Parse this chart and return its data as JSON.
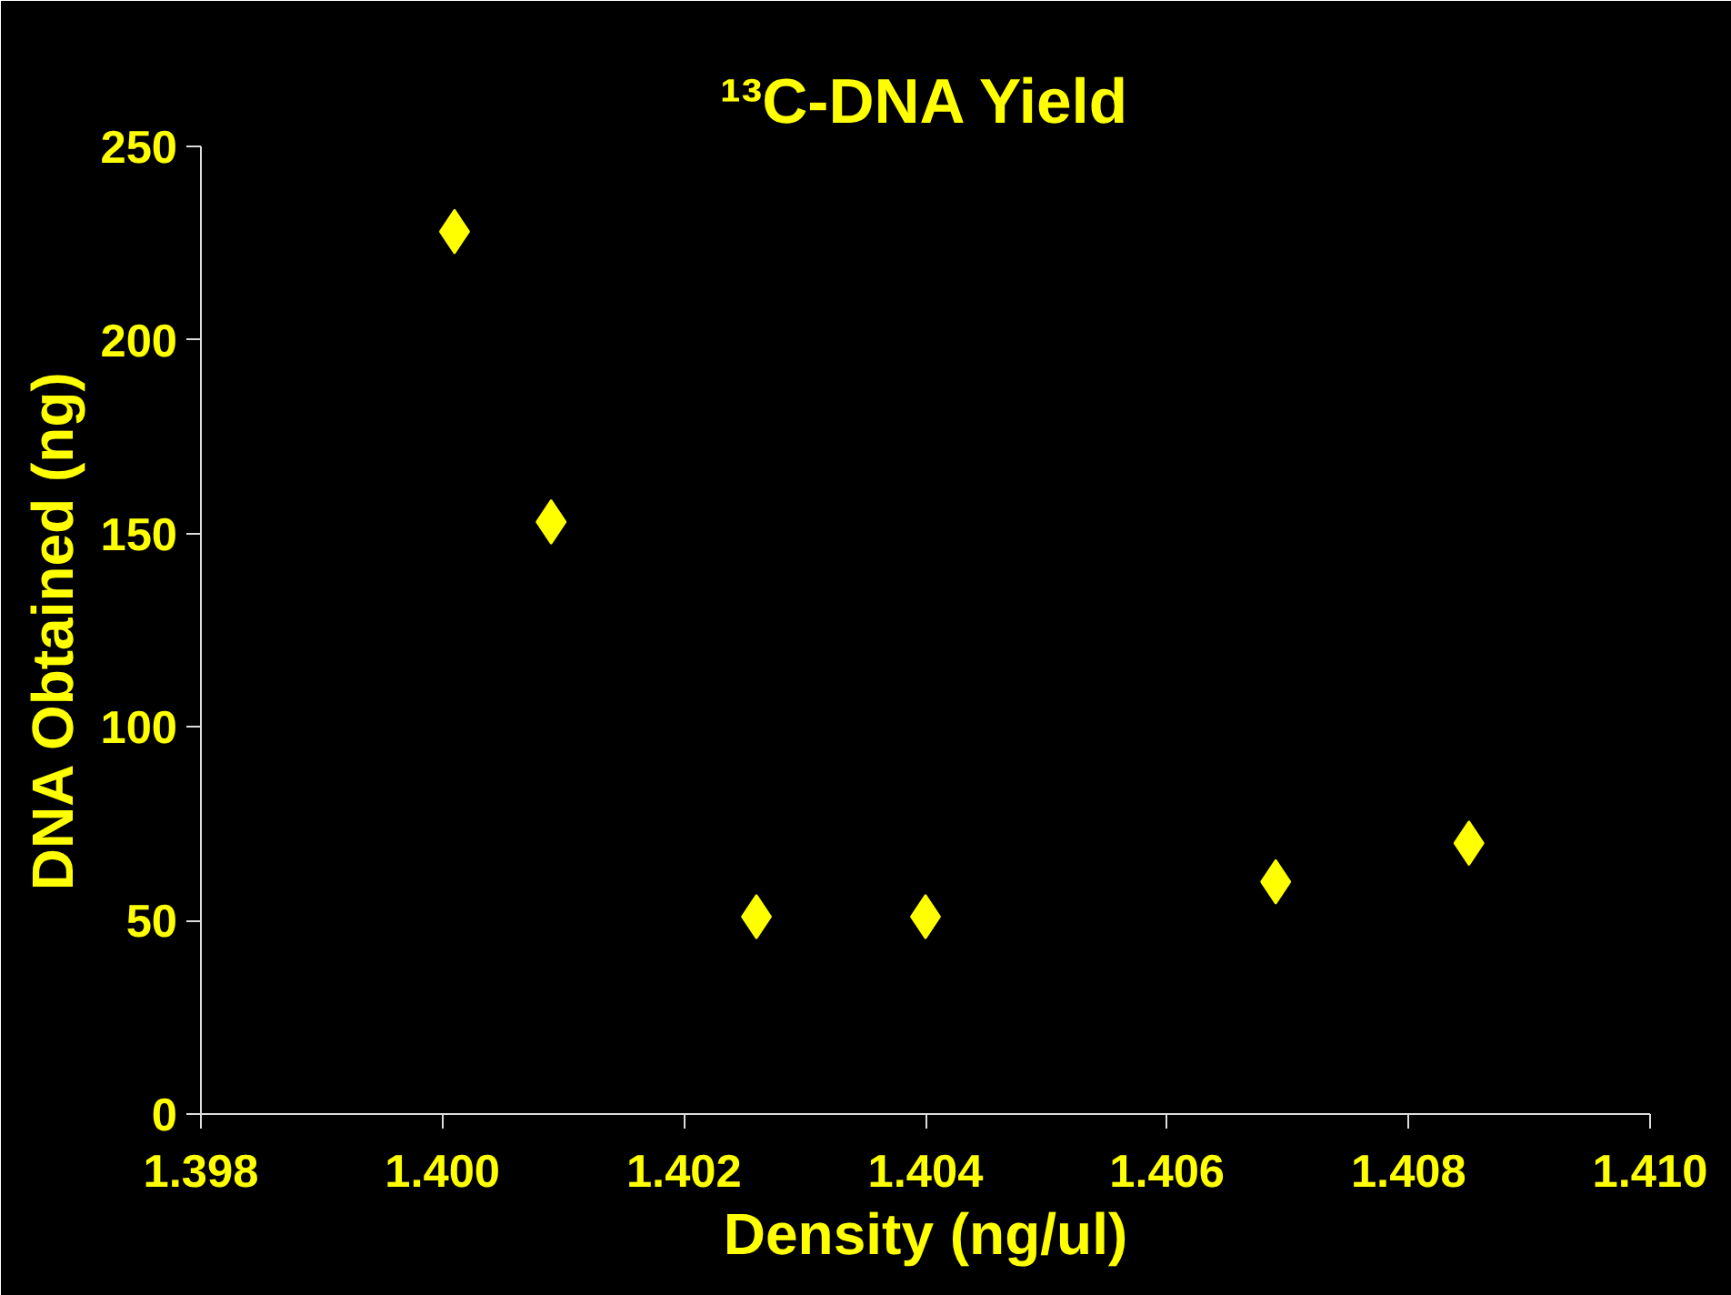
{
  "chart_data": {
    "type": "scatter",
    "title": "¹³C-DNA Yield",
    "xlabel": "Density (ng/ul)",
    "ylabel": "DNA Obtained (ng)",
    "x": [
      1.4001,
      1.4009,
      1.4026,
      1.404,
      1.4069,
      1.4085
    ],
    "series": [
      {
        "color": "#ffff00",
        "values": [
          228,
          153,
          51,
          51,
          60,
          70
        ]
      }
    ],
    "marker": "diamond",
    "grid": false,
    "xlim": [
      1.398,
      1.41
    ],
    "xticks": [
      {
        "value": 1.398,
        "label": "1.398"
      },
      {
        "value": 1.4,
        "label": "1.400"
      },
      {
        "value": 1.402,
        "label": "1.402"
      },
      {
        "value": 1.404,
        "label": "1.404"
      },
      {
        "value": 1.406,
        "label": "1.406"
      },
      {
        "value": 1.408,
        "label": "1.408"
      },
      {
        "value": 1.41,
        "label": "1.410"
      }
    ],
    "ylim": [
      0,
      250
    ],
    "yticks": [
      0,
      50,
      100,
      150,
      200,
      250
    ]
  }
}
